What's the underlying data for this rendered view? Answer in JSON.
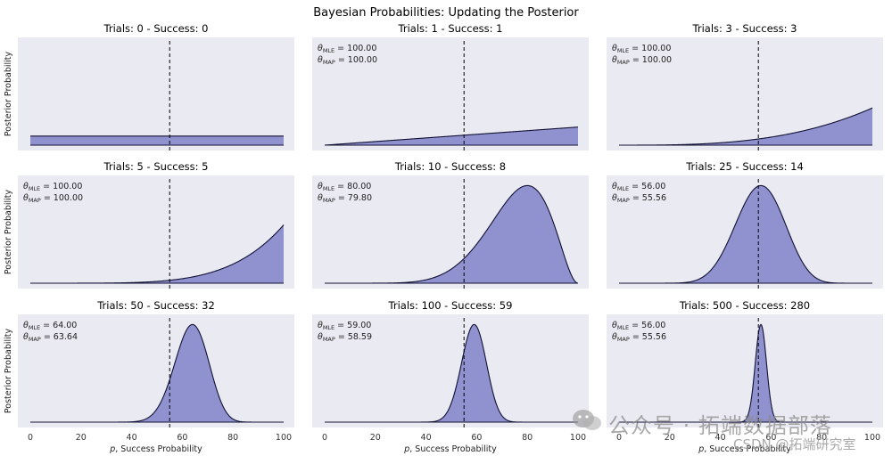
{
  "figure": {
    "suptitle": "Bayesian Probabilities: Updating the Posterior",
    "ylabel": "Posterior Probability",
    "xlabel": "p, Success Probability",
    "xticks": [
      0,
      20,
      40,
      60,
      80,
      100
    ],
    "true_p_marker": 55
  },
  "chart_data": [
    {
      "type": "area",
      "title": "Trials: 0 - Success: 0",
      "trials": 0,
      "successes": 0,
      "mle": null,
      "map": null,
      "xlim": [
        0,
        100
      ],
      "grid": false
    },
    {
      "type": "area",
      "title": "Trials: 1 - Success: 1",
      "trials": 1,
      "successes": 1,
      "mle": "100.00",
      "map": "100.00",
      "xlim": [
        0,
        100
      ],
      "grid": false
    },
    {
      "type": "area",
      "title": "Trials: 3 - Success: 3",
      "trials": 3,
      "successes": 3,
      "mle": "100.00",
      "map": "100.00",
      "xlim": [
        0,
        100
      ],
      "grid": false
    },
    {
      "type": "area",
      "title": "Trials: 5 - Success: 5",
      "trials": 5,
      "successes": 5,
      "mle": "100.00",
      "map": "100.00",
      "xlim": [
        0,
        100
      ],
      "grid": false
    },
    {
      "type": "area",
      "title": "Trials: 10 - Success: 8",
      "trials": 10,
      "successes": 8,
      "mle": "80.00",
      "map": "79.80",
      "xlim": [
        0,
        100
      ],
      "grid": false
    },
    {
      "type": "area",
      "title": "Trials: 25 - Success: 14",
      "trials": 25,
      "successes": 14,
      "mle": "56.00",
      "map": "55.56",
      "xlim": [
        0,
        100
      ],
      "grid": false
    },
    {
      "type": "area",
      "title": "Trials: 50 - Success: 32",
      "trials": 50,
      "successes": 32,
      "mle": "64.00",
      "map": "63.64",
      "xlim": [
        0,
        100
      ],
      "grid": false
    },
    {
      "type": "area",
      "title": "Trials: 100 - Success: 59",
      "trials": 100,
      "successes": 59,
      "mle": "59.00",
      "map": "58.59",
      "xlim": [
        0,
        100
      ],
      "grid": false
    },
    {
      "type": "area",
      "title": "Trials: 500 - Success: 280",
      "trials": 500,
      "successes": 280,
      "mle": "56.00",
      "map": "55.56",
      "xlim": [
        0,
        100
      ],
      "grid": false
    }
  ],
  "colors": {
    "panel_bg": "#eaeaf2",
    "fill": "#8b8ccc",
    "line": "#111133"
  },
  "watermark": {
    "line1": "公众号 · 拓端数据部落",
    "line2": "CSDN @拓端研究室",
    "icon": "wechat-icon"
  }
}
